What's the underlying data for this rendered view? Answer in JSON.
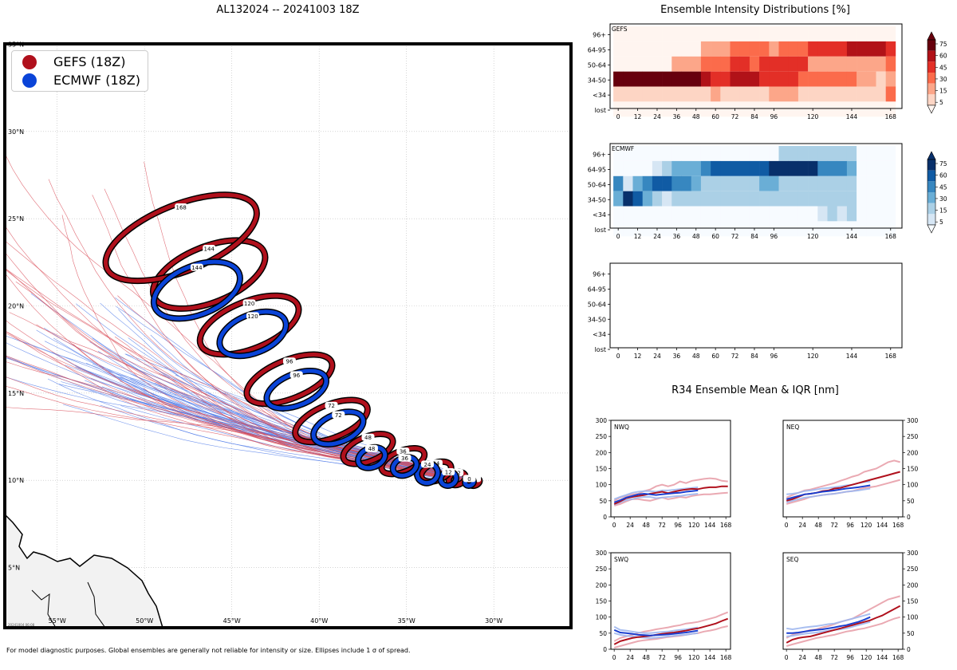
{
  "main_title": "AL132024 -- 20241003 18Z",
  "footer_note": "For model diagnostic purposes. Global ensembles are generally not reliable for intensity or size. Ellipses include 1 σ of spread.",
  "map_stamp": "20241004 06:08",
  "colors": {
    "gefs": "#b0101c",
    "ecmwf": "#0a44d8",
    "gefs_thin": "#d94c57",
    "ecmwf_thin": "#4f7be8"
  },
  "map": {
    "lat_labels": [
      "35°N",
      "30°N",
      "25°N",
      "20°N",
      "15°N",
      "10°N",
      "5°N"
    ],
    "lon_labels": [
      "55°W",
      "50°W",
      "45°W",
      "40°W",
      "35°W",
      "30°W"
    ],
    "legend": [
      {
        "name": "GEFS (18Z)",
        "color": "#b0101c"
      },
      {
        "name": "ECMWF (18Z)",
        "color": "#0a44d8"
      }
    ],
    "gefs_ellipses": [
      {
        "hour": "0",
        "lon": -31.1,
        "lat": 9.9,
        "rx": 0.3,
        "ry": 0.2
      },
      {
        "hour": "12",
        "lon": -32.1,
        "lat": 10.1,
        "rx": 0.5,
        "ry": 0.35
      },
      {
        "hour": "24",
        "lon": -33.3,
        "lat": 10.5,
        "rx": 0.9,
        "ry": 0.5
      },
      {
        "hour": "36",
        "lon": -35.2,
        "lat": 11.1,
        "rx": 1.3,
        "ry": 0.6
      },
      {
        "hour": "48",
        "lon": -37.2,
        "lat": 11.8,
        "rx": 1.5,
        "ry": 0.7
      },
      {
        "hour": "72",
        "lon": -39.3,
        "lat": 13.4,
        "rx": 2.2,
        "ry": 0.95
      },
      {
        "hour": "96",
        "lon": -41.7,
        "lat": 15.8,
        "rx": 2.6,
        "ry": 1.1
      },
      {
        "hour": "120",
        "lon": -44.0,
        "lat": 18.9,
        "rx": 3.0,
        "ry": 1.35
      },
      {
        "hour": "144",
        "lon": -46.3,
        "lat": 21.8,
        "rx": 3.4,
        "ry": 1.6
      },
      {
        "hour": "168",
        "lon": -47.9,
        "lat": 23.9,
        "rx": 4.6,
        "ry": 1.9
      }
    ],
    "ecmwf_ellipses": [
      {
        "hour": "0",
        "lon": -31.4,
        "lat": 9.9,
        "rx": 0.25,
        "ry": 0.2
      },
      {
        "hour": "12",
        "lon": -32.6,
        "lat": 10.1,
        "rx": 0.45,
        "ry": 0.4
      },
      {
        "hour": "24",
        "lon": -33.8,
        "lat": 10.4,
        "rx": 0.6,
        "ry": 0.55
      },
      {
        "hour": "36",
        "lon": -35.1,
        "lat": 10.8,
        "rx": 0.7,
        "ry": 0.5
      },
      {
        "hour": "48",
        "lon": -37.0,
        "lat": 11.3,
        "rx": 0.8,
        "ry": 0.55
      },
      {
        "hour": "72",
        "lon": -38.9,
        "lat": 13.0,
        "rx": 1.5,
        "ry": 0.8
      },
      {
        "hour": "96",
        "lon": -41.3,
        "lat": 15.2,
        "rx": 1.8,
        "ry": 0.9
      },
      {
        "hour": "120",
        "lon": -43.8,
        "lat": 18.4,
        "rx": 2.0,
        "ry": 1.1
      },
      {
        "hour": "144",
        "lon": -47.0,
        "lat": 20.9,
        "rx": 2.6,
        "ry": 1.4
      }
    ]
  },
  "chart_data": [
    {
      "type": "heatmap",
      "title": "Ensemble Intensity Distributions [%]",
      "panel_label": "GEFS",
      "rows": [
        "96+",
        "64-95",
        "50-64",
        "34-50",
        "<34",
        "lost"
      ],
      "x_ticks": [
        "0",
        "12",
        "24",
        "36",
        "48",
        "60",
        "72",
        "84",
        "96",
        "120",
        "144",
        "168"
      ],
      "colorbar_ticks": [
        "75",
        "60",
        "45",
        "30",
        "15",
        "5"
      ],
      "columns_hours": [
        0,
        6,
        12,
        18,
        24,
        30,
        36,
        42,
        48,
        54,
        60,
        66,
        72,
        78,
        84,
        90,
        96,
        102,
        108,
        114,
        120,
        126,
        132,
        138,
        144,
        150,
        156,
        162,
        168
      ],
      "values": [
        [
          0,
          0,
          0,
          0,
          0,
          0,
          0,
          0,
          0,
          0,
          0,
          0,
          0,
          0,
          0,
          0,
          0,
          0,
          0,
          0,
          0,
          0,
          0,
          0,
          0,
          0,
          0,
          0,
          0
        ],
        [
          0,
          0,
          0,
          0,
          0,
          0,
          0,
          0,
          0,
          20,
          20,
          20,
          30,
          30,
          30,
          30,
          25,
          40,
          40,
          40,
          55,
          55,
          55,
          55,
          70,
          70,
          70,
          70,
          55
        ],
        [
          0,
          0,
          0,
          0,
          0,
          0,
          18,
          18,
          18,
          42,
          30,
          30,
          50,
          50,
          35,
          45,
          45,
          45,
          45,
          45,
          25,
          25,
          25,
          25,
          18,
          18,
          18,
          18,
          30
        ],
        [
          85,
          85,
          85,
          85,
          85,
          85,
          85,
          85,
          85,
          65,
          55,
          55,
          60,
          60,
          60,
          48,
          48,
          45,
          45,
          35,
          35,
          30,
          30,
          30,
          30,
          18,
          18,
          5,
          18
        ],
        [
          5,
          5,
          5,
          5,
          5,
          5,
          5,
          5,
          5,
          5,
          18,
          5,
          5,
          5,
          5,
          5,
          18,
          18,
          18,
          5,
          5,
          5,
          5,
          5,
          5,
          5,
          5,
          5,
          30
        ],
        [
          0,
          0,
          0,
          0,
          0,
          0,
          0,
          0,
          0,
          0,
          0,
          0,
          0,
          0,
          0,
          0,
          0,
          0,
          0,
          0,
          0,
          0,
          0,
          0,
          0,
          0,
          0,
          0,
          0
        ]
      ]
    },
    {
      "type": "heatmap",
      "panel_label": "ECMWF",
      "rows": [
        "96+",
        "64-95",
        "50-64",
        "34-50",
        "<34",
        "lost"
      ],
      "x_ticks": [
        "0",
        "12",
        "24",
        "36",
        "48",
        "60",
        "72",
        "84",
        "96",
        "120",
        "144",
        "168"
      ],
      "colorbar_ticks": [
        "75",
        "60",
        "45",
        "30",
        "15",
        "5"
      ],
      "columns_hours": [
        0,
        6,
        12,
        18,
        24,
        30,
        36,
        42,
        48,
        54,
        60,
        66,
        72,
        78,
        84,
        90,
        96,
        102,
        108,
        114,
        120,
        126,
        132,
        138,
        144,
        150,
        156,
        162,
        168
      ],
      "values": [
        [
          2,
          2,
          2,
          2,
          2,
          2,
          2,
          2,
          2,
          2,
          2,
          2,
          2,
          2,
          2,
          2,
          2,
          15,
          15,
          15,
          15,
          15,
          25,
          25,
          20,
          0,
          0,
          0,
          0
        ],
        [
          2,
          2,
          2,
          2,
          12,
          25,
          40,
          40,
          40,
          55,
          70,
          70,
          70,
          70,
          70,
          70,
          80,
          80,
          80,
          80,
          80,
          55,
          55,
          55,
          35,
          0,
          0,
          0,
          0
        ],
        [
          55,
          5,
          35,
          55,
          70,
          70,
          55,
          55,
          40,
          25,
          25,
          25,
          25,
          25,
          25,
          35,
          35,
          20,
          20,
          20,
          15,
          15,
          15,
          15,
          15,
          0,
          0,
          0,
          0
        ],
        [
          40,
          90,
          60,
          35,
          20,
          5,
          15,
          15,
          15,
          15,
          15,
          15,
          15,
          15,
          15,
          15,
          15,
          15,
          15,
          15,
          15,
          15,
          15,
          15,
          15,
          0,
          0,
          0,
          0
        ],
        [
          2,
          2,
          2,
          2,
          2,
          2,
          2,
          2,
          2,
          2,
          2,
          2,
          2,
          2,
          2,
          2,
          2,
          2,
          2,
          2,
          2,
          5,
          15,
          5,
          15,
          0,
          0,
          0,
          0
        ],
        [
          0,
          0,
          0,
          0,
          0,
          0,
          0,
          0,
          0,
          0,
          0,
          0,
          0,
          0,
          0,
          0,
          0,
          0,
          0,
          0,
          0,
          0,
          0,
          0,
          0,
          0,
          0,
          0,
          0
        ]
      ]
    },
    {
      "type": "heatmap",
      "panel_label": "",
      "rows": [
        "96+",
        "64-95",
        "50-64",
        "34-50",
        "<34",
        "lost"
      ],
      "x_ticks": [
        "0",
        "12",
        "24",
        "36",
        "48",
        "60",
        "72",
        "84",
        "96",
        "120",
        "144",
        "168"
      ],
      "values": []
    },
    {
      "type": "line",
      "title": "R34 Ensemble Mean & IQR [nm]",
      "ylim": [
        0,
        300
      ],
      "y_ticks": [
        "0",
        "50",
        "100",
        "150",
        "200",
        "250",
        "300"
      ],
      "x_ticks": [
        "0",
        "24",
        "48",
        "72",
        "96",
        "120",
        "144",
        "168"
      ],
      "panels": [
        {
          "label": "NWQ",
          "gefs_mean": [
            40,
            48,
            58,
            62,
            65,
            68,
            72,
            75,
            78,
            74,
            78,
            82,
            85,
            87,
            86,
            90,
            92,
            92,
            95,
            95
          ],
          "gefs_low": [
            35,
            40,
            48,
            55,
            55,
            52,
            50,
            55,
            60,
            55,
            58,
            62,
            60,
            65,
            68,
            70,
            70,
            72,
            74,
            75
          ],
          "gefs_high": [
            50,
            60,
            65,
            70,
            72,
            80,
            85,
            95,
            100,
            95,
            100,
            110,
            105,
            112,
            115,
            118,
            120,
            118,
            112,
            110
          ],
          "ecmwf_mean": [
            45,
            52,
            60,
            65,
            70,
            72,
            70,
            68,
            70,
            72,
            74,
            75,
            78,
            80,
            82
          ],
          "ecmwf_low": [
            38,
            45,
            52,
            55,
            60,
            62,
            62,
            58,
            60,
            62,
            64,
            65,
            68,
            70,
            72
          ],
          "ecmwf_high": [
            55,
            62,
            68,
            75,
            78,
            80,
            80,
            78,
            82,
            82,
            84,
            86,
            88,
            90,
            92
          ]
        },
        {
          "label": "NEQ",
          "gefs_mean": [
            50,
            55,
            62,
            70,
            72,
            75,
            80,
            82,
            88,
            90,
            95,
            100,
            105,
            110,
            115,
            120,
            125,
            130,
            135,
            140
          ],
          "gefs_low": [
            40,
            45,
            50,
            55,
            62,
            65,
            68,
            70,
            72,
            75,
            78,
            80,
            85,
            90,
            92,
            95,
            100,
            105,
            110,
            115
          ],
          "gefs_high": [
            60,
            68,
            75,
            82,
            85,
            90,
            95,
            100,
            105,
            112,
            118,
            125,
            130,
            140,
            145,
            150,
            160,
            170,
            175,
            170
          ],
          "ecmwf_mean": [
            55,
            60,
            65,
            70,
            72,
            75,
            78,
            80,
            82,
            85,
            88,
            90,
            92,
            95,
            98
          ],
          "ecmwf_low": [
            45,
            50,
            55,
            60,
            62,
            65,
            68,
            70,
            72,
            75,
            78,
            80,
            82,
            85,
            88
          ],
          "ecmwf_high": [
            70,
            72,
            75,
            80,
            82,
            85,
            88,
            90,
            92,
            95,
            98,
            100,
            105,
            108,
            110
          ]
        },
        {
          "label": "SWQ",
          "gefs_mean": [
            15,
            25,
            30,
            35,
            38,
            40,
            42,
            45,
            48,
            50,
            52,
            55,
            58,
            62,
            65,
            70,
            75,
            80,
            88,
            95
          ],
          "gefs_low": [
            5,
            10,
            15,
            20,
            25,
            28,
            30,
            32,
            35,
            38,
            40,
            42,
            45,
            48,
            50,
            55,
            58,
            62,
            68,
            72
          ],
          "gefs_high": [
            25,
            35,
            40,
            45,
            50,
            55,
            58,
            62,
            65,
            68,
            72,
            75,
            80,
            82,
            85,
            90,
            95,
            100,
            108,
            115
          ],
          "ecmwf_mean": [
            60,
            52,
            50,
            48,
            45,
            44,
            43,
            44,
            45,
            46,
            48,
            50,
            52,
            55,
            58
          ],
          "ecmwf_low": [
            50,
            45,
            42,
            40,
            38,
            36,
            35,
            36,
            38,
            40,
            42,
            44,
            45,
            48,
            50
          ],
          "ecmwf_high": [
            70,
            60,
            58,
            55,
            52,
            50,
            50,
            52,
            54,
            55,
            58,
            60,
            62,
            65,
            68
          ]
        },
        {
          "label": "SEQ",
          "gefs_mean": [
            20,
            30,
            35,
            38,
            40,
            45,
            50,
            55,
            60,
            65,
            70,
            75,
            80,
            85,
            90,
            98,
            105,
            115,
            125,
            135
          ],
          "gefs_low": [
            10,
            15,
            20,
            25,
            30,
            35,
            38,
            42,
            45,
            50,
            55,
            58,
            62,
            65,
            70,
            75,
            80,
            88,
            95,
            100
          ],
          "gefs_high": [
            35,
            45,
            50,
            55,
            60,
            62,
            68,
            72,
            78,
            85,
            90,
            95,
            105,
            115,
            125,
            135,
            145,
            155,
            160,
            165
          ],
          "ecmwf_mean": [
            50,
            50,
            52,
            55,
            58,
            60,
            62,
            65,
            68,
            72,
            75,
            80,
            85,
            92,
            100
          ],
          "ecmwf_low": [
            40,
            42,
            45,
            48,
            50,
            52,
            55,
            58,
            60,
            62,
            65,
            70,
            75,
            80,
            85
          ],
          "ecmwf_high": [
            65,
            62,
            65,
            68,
            70,
            72,
            75,
            78,
            80,
            85,
            90,
            95,
            100,
            105,
            110
          ]
        }
      ]
    }
  ]
}
